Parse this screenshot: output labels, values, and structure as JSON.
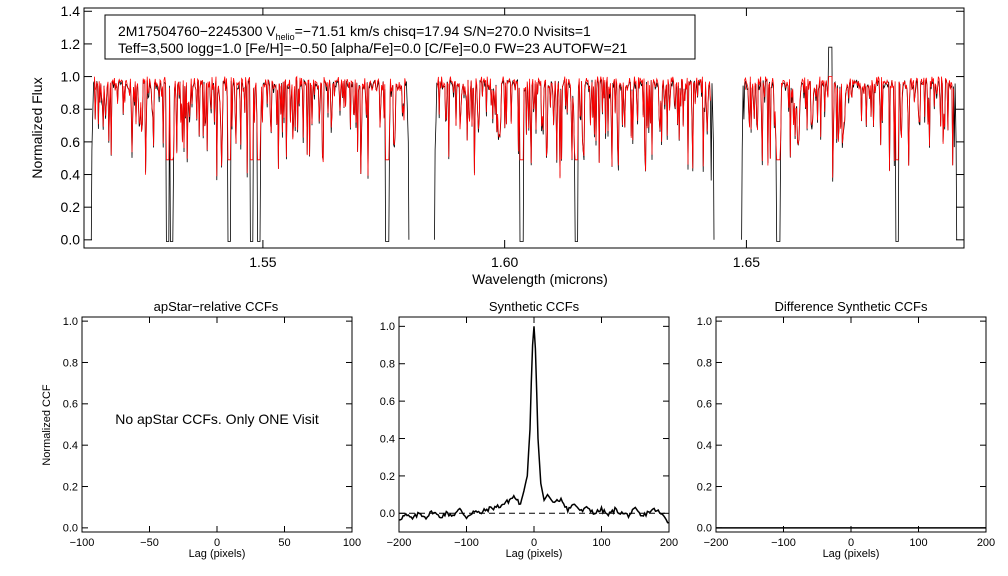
{
  "chart_data": [
    {
      "type": "line",
      "name": "spectrum",
      "xlabel": "Wavelength (microns)",
      "ylabel": "Normalized Flux",
      "xlim": [
        1.513,
        1.695
      ],
      "ylim": [
        -0.05,
        1.42
      ],
      "xticks": [
        1.55,
        1.6,
        1.65
      ],
      "xtick_labels": [
        "1.55",
        "1.60",
        "1.65"
      ],
      "yticks": [
        0.0,
        0.2,
        0.4,
        0.6,
        0.8,
        1.0,
        1.2,
        1.4
      ],
      "ytick_labels": [
        "0.0",
        "0.2",
        "0.4",
        "0.6",
        "0.8",
        "1.0",
        "1.2",
        "1.4"
      ],
      "legend": {
        "line1_pre": "2M17504760−2245300  V",
        "line1_sub": "helio",
        "line1_post": "=−71.51 km/s  chisq=17.94  S/N=270.0  Nvisits=1",
        "line2": "Teff=3,500 logg=1.0 [Fe/H]=−0.50 [alpha/Fe]=0.0 [C/Fe]=0.0 FW=23 AUTOFW=21"
      },
      "chips": [
        [
          1.5145,
          1.5802
        ],
        [
          1.5855,
          1.6433
        ],
        [
          1.649,
          1.6935
        ]
      ],
      "deep_lines": [
        1.5303,
        1.5311,
        1.543,
        1.5477,
        1.5491,
        1.5757,
        1.6035,
        1.6149,
        1.6566,
        1.6812
      ],
      "series": [
        {
          "name": "observed",
          "color": "#000000",
          "continuum": 0.97
        },
        {
          "name": "synthetic",
          "color": "#ff0000",
          "continuum": 0.965
        }
      ],
      "spikes": [
        {
          "x": 1.6673,
          "y": 1.18
        }
      ]
    },
    {
      "type": "line",
      "name": "apstar-ccf",
      "title": "apStar−relative CCFs",
      "xlabel": "Lag (pixels)",
      "ylabel": "Normalized CCF",
      "xlim": [
        -100,
        100
      ],
      "ylim": [
        -0.02,
        1.02
      ],
      "xticks": [
        -100,
        -50,
        0,
        50,
        100
      ],
      "xtick_labels": [
        "−100",
        "−50",
        "0",
        "50",
        "100"
      ],
      "yticks": [
        0.0,
        0.2,
        0.4,
        0.6,
        0.8,
        1.0
      ],
      "ytick_labels": [
        "0.0",
        "0.2",
        "0.4",
        "0.6",
        "0.8",
        "1.0"
      ],
      "annotation": "No apStar CCFs.  Only ONE Visit",
      "series": []
    },
    {
      "type": "line",
      "name": "synthetic-ccf",
      "title": "Synthetic CCFs",
      "xlabel": "Lag (pixels)",
      "xlim": [
        -200,
        200
      ],
      "ylim": [
        -0.1,
        1.05
      ],
      "xticks": [
        -200,
        -100,
        0,
        100,
        200
      ],
      "xtick_labels": [
        "−200",
        "−100",
        "0",
        "100",
        "200"
      ],
      "yticks": [
        0.0,
        0.2,
        0.4,
        0.6,
        0.8,
        1.0
      ],
      "ytick_labels": [
        "0.0",
        "0.2",
        "0.4",
        "0.6",
        "0.8",
        "1.0"
      ],
      "reference_line": 0.0,
      "peak": {
        "lag": 0,
        "value": 1.0
      },
      "series": [
        {
          "name": "ccf",
          "color": "#000000",
          "x": [
            -200,
            -190,
            -180,
            -170,
            -160,
            -150,
            -140,
            -130,
            -120,
            -110,
            -100,
            -90,
            -80,
            -70,
            -60,
            -50,
            -40,
            -30,
            -20,
            -15,
            -10,
            -6,
            -4,
            -2,
            0,
            2,
            4,
            6,
            10,
            15,
            20,
            30,
            40,
            50,
            60,
            70,
            80,
            90,
            100,
            110,
            120,
            130,
            140,
            150,
            160,
            170,
            180,
            190,
            200
          ],
          "y": [
            -0.03,
            -0.01,
            -0.03,
            0.0,
            -0.02,
            0.01,
            -0.02,
            0.0,
            -0.01,
            0.02,
            -0.02,
            0.01,
            0.0,
            0.02,
            0.03,
            0.04,
            0.06,
            0.09,
            0.05,
            0.12,
            0.2,
            0.45,
            0.7,
            0.9,
            1.0,
            0.88,
            0.65,
            0.4,
            0.16,
            0.07,
            0.1,
            0.05,
            0.08,
            0.02,
            0.05,
            0.01,
            0.03,
            0.0,
            0.02,
            -0.01,
            0.02,
            0.0,
            -0.01,
            0.02,
            -0.02,
            0.01,
            0.02,
            -0.01,
            -0.05
          ]
        }
      ]
    },
    {
      "type": "line",
      "name": "difference-ccf",
      "title": "Difference Synthetic CCFs",
      "xlabel": "Lag (pixels)",
      "xlim": [
        -200,
        200
      ],
      "ylim": [
        -0.02,
        1.02
      ],
      "xticks": [
        -200,
        -100,
        0,
        100,
        200
      ],
      "xtick_labels": [
        "−200",
        "−100",
        "0",
        "100",
        "200"
      ],
      "yticks": [
        0.0,
        0.2,
        0.4,
        0.6,
        0.8,
        1.0
      ],
      "ytick_labels": [
        "0.0",
        "0.2",
        "0.4",
        "0.6",
        "0.8",
        "1.0"
      ],
      "series": [
        {
          "name": "difference",
          "color": "#000000",
          "x": [
            -200,
            200
          ],
          "y": [
            0.0,
            0.0
          ]
        }
      ]
    }
  ]
}
